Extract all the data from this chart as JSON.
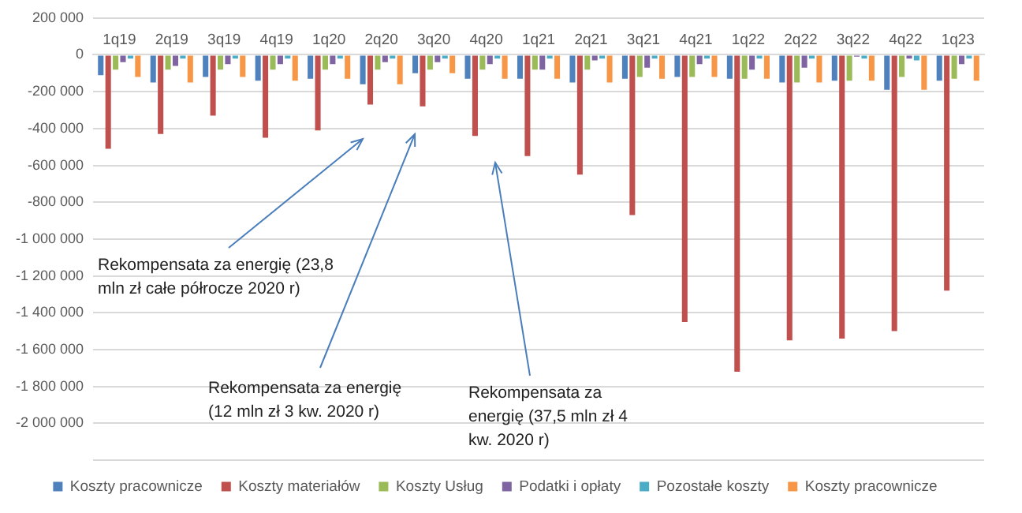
{
  "chart_data": {
    "type": "bar",
    "categories": [
      "1q19",
      "2q19",
      "3q19",
      "4q19",
      "1q20",
      "2q20",
      "3q20",
      "4q20",
      "1q21",
      "2q21",
      "3q21",
      "4q21",
      "1q22",
      "2q22",
      "3q22",
      "4q22",
      "1q23"
    ],
    "series": [
      {
        "name": "Koszty pracownicze",
        "color": "#4f81bd",
        "values": [
          -110000,
          -150000,
          -120000,
          -140000,
          -130000,
          -160000,
          -100000,
          -130000,
          -130000,
          -150000,
          -130000,
          -120000,
          -130000,
          -150000,
          -140000,
          -190000,
          -140000
        ]
      },
      {
        "name": "Koszty materiałów",
        "color": "#c0504d",
        "values": [
          -510000,
          -430000,
          -330000,
          -450000,
          -410000,
          -270000,
          -280000,
          -440000,
          -550000,
          -650000,
          -870000,
          -1450000,
          -1720000,
          -1550000,
          -1540000,
          -1500000,
          -1280000
        ]
      },
      {
        "name": "Koszty Usług",
        "color": "#9bbb59",
        "values": [
          -80000,
          -80000,
          -80000,
          -80000,
          -80000,
          -80000,
          -80000,
          -80000,
          -80000,
          -80000,
          -120000,
          -120000,
          -130000,
          -150000,
          -140000,
          -120000,
          -130000
        ]
      },
      {
        "name": "Podatki i opłaty",
        "color": "#8064a2",
        "values": [
          -40000,
          -60000,
          -50000,
          -50000,
          -50000,
          -40000,
          -40000,
          -50000,
          -80000,
          -30000,
          -70000,
          -50000,
          -80000,
          -70000,
          -10000,
          -20000,
          -50000
        ]
      },
      {
        "name": "Pozostałe koszty",
        "color": "#4bacc6",
        "values": [
          -20000,
          -20000,
          -20000,
          -20000,
          -20000,
          -20000,
          -20000,
          -20000,
          -20000,
          -20000,
          -20000,
          -20000,
          -20000,
          -20000,
          -20000,
          -30000,
          -20000
        ]
      },
      {
        "name": "Koszty pracownicze",
        "color": "#f79646",
        "values": [
          -120000,
          -150000,
          -120000,
          -140000,
          -130000,
          -160000,
          -100000,
          -130000,
          -130000,
          -150000,
          -130000,
          -120000,
          -130000,
          -150000,
          -140000,
          -190000,
          -140000
        ]
      }
    ],
    "ylim": [
      -2200000,
      200000
    ],
    "yticks": [
      {
        "value": -2200000,
        "label": null
      },
      {
        "value": -2000000,
        "label": "-2 000 000"
      },
      {
        "value": -1800000,
        "label": "-1 800 000"
      },
      {
        "value": -1600000,
        "label": "-1 600 000"
      },
      {
        "value": -1400000,
        "label": "-1 400 000"
      },
      {
        "value": -1200000,
        "label": "-1 200 000"
      },
      {
        "value": -1000000,
        "label": "-1 000 000"
      },
      {
        "value": -800000,
        "label": "-800 000"
      },
      {
        "value": -600000,
        "label": "-600 000"
      },
      {
        "value": -400000,
        "label": "-400 000"
      },
      {
        "value": -200000,
        "label": "-200 000"
      },
      {
        "value": 0,
        "label": "0"
      },
      {
        "value": 200000,
        "label": "200 000"
      }
    ],
    "grid": "y",
    "legend": "bottom",
    "annotations": [
      "Rekompensata za energię (23,8 mln zł całe półrocze 2020 r)",
      "Rekompensata za energię (12 mln zł 3 kw. 2020 r)",
      "Rekompensata za energię (37,5 mln zł 4 kw. 2020 r)"
    ]
  }
}
